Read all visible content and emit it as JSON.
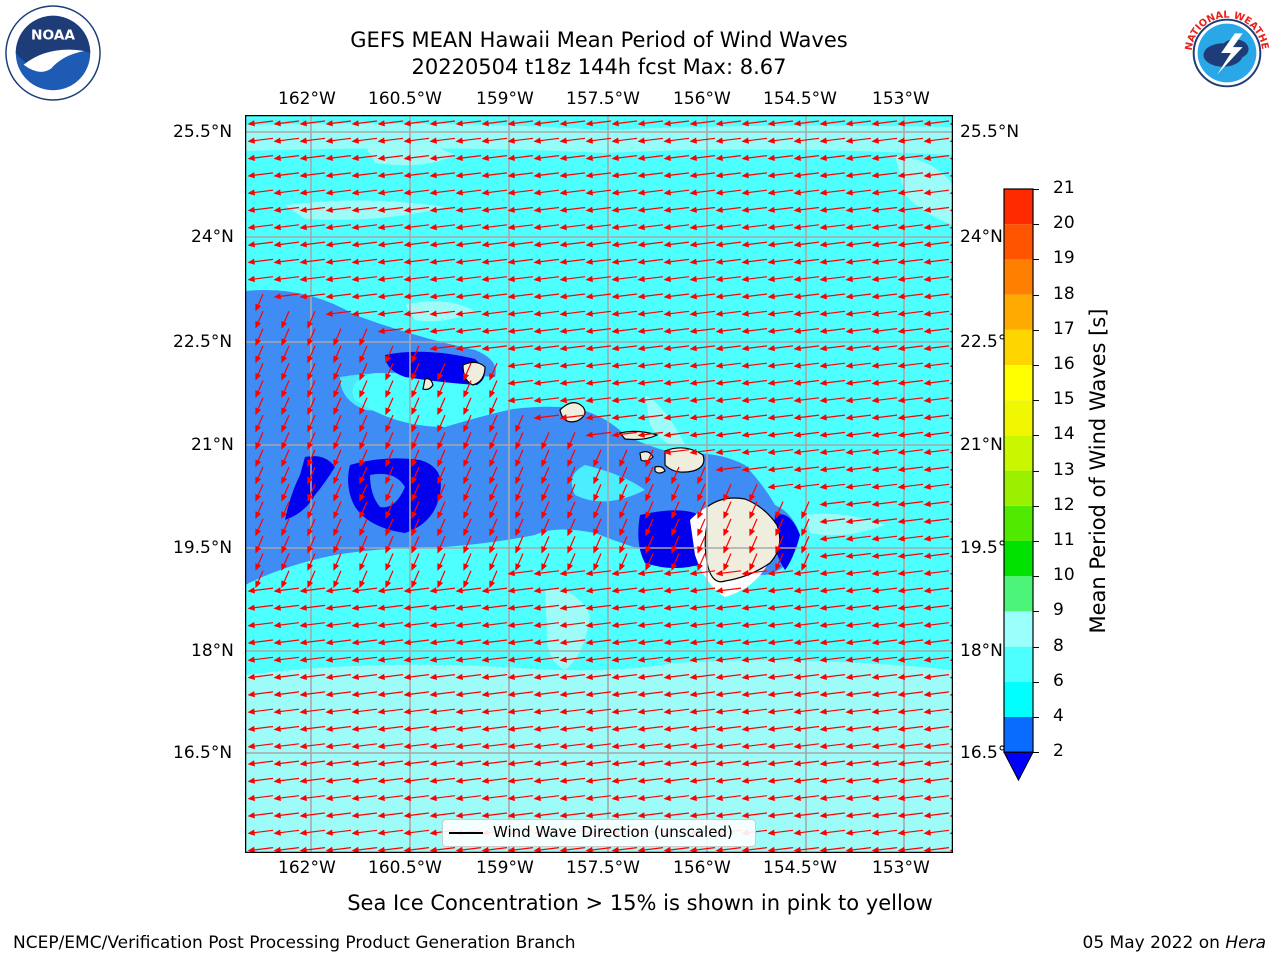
{
  "title": {
    "line1": "GEFS MEAN Hawaii Mean Period of Wind Waves",
    "line2": "20220504 t18z 144h fcst   Max: 8.67"
  },
  "axes": {
    "lon_labels": [
      "162°W",
      "160.5°W",
      "159°W",
      "157.5°W",
      "156°W",
      "154.5°W",
      "153°W"
    ],
    "lat_labels": [
      "25.5°N",
      "24°N",
      "22.5°N",
      "21°N",
      "19.5°N",
      "18°N",
      "16.5°N"
    ]
  },
  "colorbar": {
    "label": "Mean Period of Wind Waves [s]",
    "levels": [
      "2",
      "4",
      "6",
      "8",
      "9",
      "10",
      "11",
      "12",
      "13",
      "14",
      "15",
      "16",
      "17",
      "18",
      "19",
      "20",
      "21"
    ],
    "colors": [
      "#0a6cff",
      "#00ffff",
      "#4dffff",
      "#9bfffb",
      "#4cf57a",
      "#00e100",
      "#4fea00",
      "#9bf000",
      "#c9f700",
      "#f1f700",
      "#ffff00",
      "#ffd500",
      "#ffaa00",
      "#ff8000",
      "#ff5500",
      "#ff2a00",
      "#ff0000"
    ],
    "under_color": "#0000ff"
  },
  "map": {
    "ocean_colors": {
      "light": "#9dfcf8",
      "mid": "#4dffff",
      "blue": "#3f8cf5",
      "deep": "#0000ee"
    },
    "arrow_color": "#ff0000",
    "land_color": "#efeede"
  },
  "legend": {
    "label": "Wind Wave Direction (unscaled)"
  },
  "note": "Sea Ice Concentration > 15% is shown in pink to yellow",
  "footer": {
    "left": "NCEP/EMC/Verification Post Processing Product Generation Branch",
    "date": "05 May 2022 on ",
    "machine": "Hera"
  },
  "logos": {
    "noaa_text": "NOAA",
    "nws_text": "NATIONAL WEATHER SERVICE"
  }
}
